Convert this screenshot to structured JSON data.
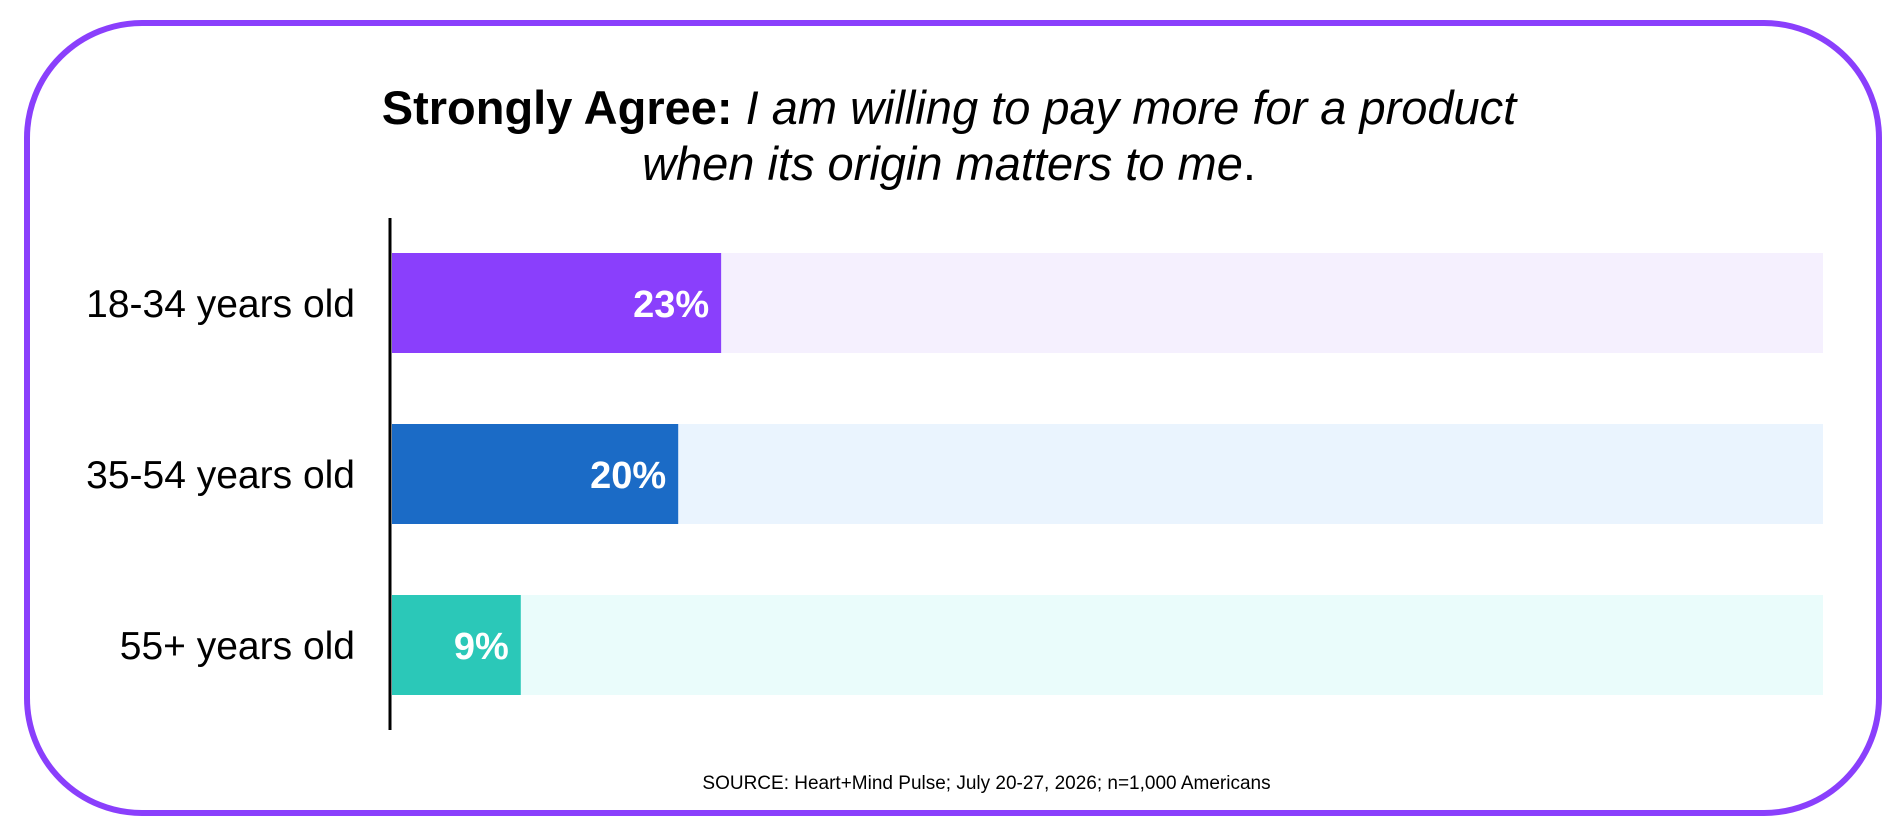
{
  "title": {
    "lead": "Strongly Agree:",
    "italic_line1": "I am willing to pay more for a product",
    "italic_line2": "when its origin matters to me",
    "end": "."
  },
  "source": "SOURCE: Heart+Mind Pulse; July 20-27, 2026; n=1,000 Americans",
  "colors": {
    "frame": "#8a3ffc"
  },
  "chart_data": {
    "type": "bar",
    "orientation": "horizontal",
    "categories": [
      "18-34 years old",
      "35-54 years old",
      "55+ years old"
    ],
    "values": [
      23,
      20,
      9
    ],
    "value_labels": [
      "23%",
      "20%",
      "9%"
    ],
    "unit": "%",
    "xlim": [
      0,
      100
    ],
    "bar_colors": [
      "#8a3ffc",
      "#1b6bc6",
      "#2bc8b8"
    ],
    "track_colors": [
      "#f5f0fe",
      "#eaf4fe",
      "#eafcfb"
    ],
    "grid": false,
    "legend": "none"
  }
}
